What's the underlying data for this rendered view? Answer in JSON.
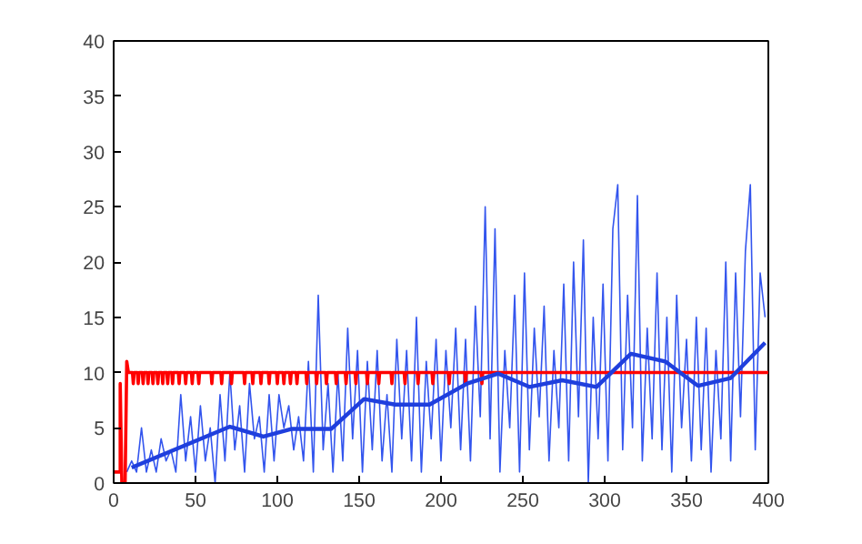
{
  "chart_data": {
    "type": "line",
    "xlim": [
      0,
      400
    ],
    "ylim": [
      0,
      40
    ],
    "xticks": [
      0,
      50,
      100,
      150,
      200,
      250,
      300,
      350,
      400
    ],
    "yticks": [
      0,
      5,
      10,
      15,
      20,
      25,
      30,
      35,
      40
    ],
    "grid": false,
    "marker": "none",
    "line_style": "solid",
    "series": [
      {
        "color": "#3355ee",
        "x": [
          8,
          11,
          14,
          17,
          20,
          23,
          26,
          29,
          32,
          35,
          38,
          41,
          44,
          47,
          50,
          53,
          56,
          59,
          62,
          65,
          68,
          71,
          74,
          77,
          80,
          83,
          86,
          89,
          92,
          95,
          98,
          101,
          104,
          107,
          110,
          113,
          116,
          119,
          122,
          125,
          128,
          131,
          134,
          137,
          140,
          143,
          146,
          149,
          152,
          155,
          158,
          161,
          164,
          167,
          170,
          173,
          176,
          179,
          182,
          185,
          188,
          191,
          194,
          197,
          200,
          203,
          206,
          209,
          212,
          215,
          218,
          221,
          224,
          227,
          230,
          233,
          236,
          239,
          242,
          245,
          248,
          251,
          254,
          257,
          260,
          263,
          266,
          269,
          272,
          275,
          278,
          281,
          284,
          287,
          290,
          293,
          296,
          299,
          302,
          305,
          308,
          311,
          314,
          317,
          320,
          323,
          326,
          329,
          332,
          335,
          338,
          341,
          344,
          347,
          350,
          353,
          356,
          359,
          362,
          365,
          368,
          371,
          374,
          377,
          380,
          383,
          386,
          389,
          392,
          395,
          398
        ],
        "values": [
          1,
          2,
          1,
          5,
          1,
          3,
          1,
          4,
          2,
          3,
          1,
          8,
          2,
          6,
          1,
          7,
          2,
          5,
          0,
          8,
          2,
          10,
          3,
          7,
          1,
          9,
          4,
          6,
          1,
          8,
          2,
          8,
          5,
          7,
          3,
          6,
          2,
          11,
          1,
          17,
          3,
          9,
          1,
          10,
          2,
          14,
          4,
          12,
          1,
          11,
          3,
          12,
          2,
          8,
          1,
          13,
          4,
          12,
          2,
          15,
          1,
          11,
          4,
          13,
          2,
          12,
          5,
          14,
          3,
          13,
          2,
          16,
          6,
          25,
          4,
          23,
          1,
          12,
          5,
          17,
          1,
          19,
          3,
          14,
          6,
          16,
          2,
          12,
          5,
          18,
          2,
          20,
          6,
          22,
          0,
          15,
          4,
          18,
          2,
          23,
          27,
          3,
          17,
          5,
          26,
          2,
          14,
          4,
          19,
          3,
          15,
          1,
          17,
          5,
          13,
          2,
          15,
          3,
          14,
          1,
          12,
          4,
          20,
          2,
          19,
          6,
          21,
          27,
          3,
          19,
          15
        ]
      },
      {
        "color": "#ff0000",
        "x": [
          0,
          4,
          4,
          5,
          7,
          8,
          9,
          11.5,
          12,
          12.5,
          14.5,
          15,
          15.5,
          17.5,
          18,
          18.5,
          20.5,
          21,
          21.5,
          23.5,
          24,
          24.5,
          26.5,
          27,
          27.5,
          29.5,
          30,
          30.5,
          32.5,
          33,
          33.5,
          35.5,
          36,
          36.5,
          39.5,
          40,
          40.5,
          43.5,
          44,
          44.5,
          47.5,
          48,
          48.5,
          51.5,
          52,
          52.5,
          59.5,
          60,
          60.5,
          65.5,
          66,
          66.5,
          71.5,
          72,
          72.5,
          79.5,
          80,
          80.5,
          84.5,
          85,
          85.5,
          89.5,
          90,
          90.5,
          94.5,
          95,
          95.5,
          99.5,
          100,
          100.5,
          103.5,
          104,
          104.5,
          107.5,
          108,
          108.5,
          111.5,
          112,
          112.5,
          117.5,
          118,
          118.5,
          123.5,
          124,
          124.5,
          129.5,
          130,
          130.5,
          135.5,
          136,
          136.5,
          141.5,
          142,
          142.5,
          147.5,
          148,
          148.5,
          154.5,
          155,
          155.5,
          161.5,
          162,
          162.5,
          169.5,
          170,
          170.5,
          177.5,
          178,
          178.5,
          185.5,
          186,
          186.5,
          194.5,
          195,
          195.5,
          204.5,
          205,
          205.5,
          214.5,
          215,
          215.5,
          224.5,
          225,
          225.5,
          400
        ],
        "values": [
          1,
          1,
          9,
          0,
          0,
          11,
          10,
          10,
          9,
          10,
          10,
          9,
          10,
          10,
          9,
          10,
          10,
          9,
          10,
          10,
          9,
          10,
          10,
          9,
          10,
          10,
          9,
          10,
          10,
          9,
          10,
          10,
          9,
          10,
          10,
          9,
          10,
          10,
          9,
          10,
          10,
          9,
          10,
          10,
          9,
          10,
          10,
          9,
          10,
          10,
          9,
          10,
          10,
          9,
          10,
          10,
          9,
          10,
          10,
          9,
          10,
          10,
          9,
          10,
          10,
          9,
          10,
          10,
          9,
          10,
          10,
          9,
          10,
          10,
          9,
          10,
          10,
          9,
          10,
          10,
          9,
          10,
          10,
          9,
          10,
          10,
          9,
          10,
          10,
          9,
          10,
          10,
          9,
          10,
          10,
          9,
          10,
          10,
          9,
          10,
          10,
          9,
          10,
          10,
          9,
          10,
          10,
          9,
          10,
          10,
          9,
          10,
          10,
          9,
          10,
          10,
          9,
          10,
          10,
          9,
          10,
          10,
          9,
          10,
          10
        ]
      },
      {
        "color": "#1f3fdd",
        "x": [
          11,
          71,
          91.5,
          109,
          133,
          153,
          172,
          193,
          216,
          235,
          254,
          274,
          295,
          316,
          337,
          357,
          377,
          398
        ],
        "values": [
          1.4,
          5.1,
          4.2,
          4.9,
          4.9,
          7.6,
          7.1,
          7.1,
          9.0,
          9.9,
          8.7,
          9.3,
          8.7,
          11.7,
          11.0,
          8.8,
          9.5,
          12.7
        ]
      }
    ]
  }
}
